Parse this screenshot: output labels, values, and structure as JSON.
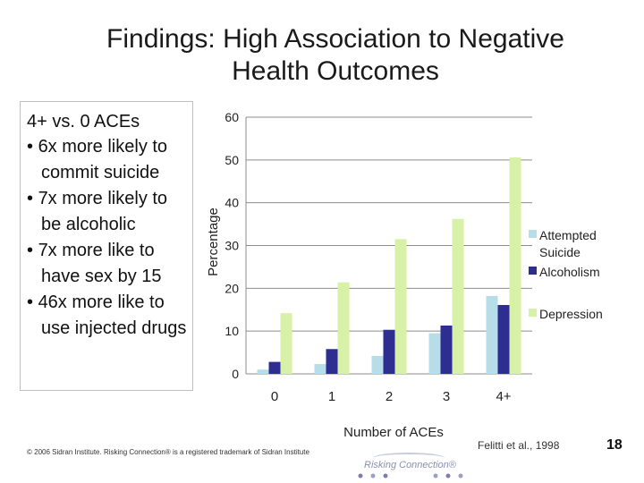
{
  "slide": {
    "title_line1": "Findings: High Association to Negative",
    "title_line2": "Health Outcomes",
    "bullets_heading": "4+  vs. 0 ACEs",
    "bullets": [
      "6x more likely to commit suicide",
      "7x more likely to be alcoholic",
      "7x more like to have sex by 15",
      "46x more like to use injected drugs"
    ],
    "footer_text": "© 2006 Sidran Institute. Risking Connection® is a registered trademark of Sidran Institute",
    "logo_text": "Risking Connection®",
    "citation": "Felitti et al., 1998",
    "slide_number": "18"
  },
  "chart_data": {
    "type": "bar",
    "categories": [
      "0",
      "1",
      "2",
      "3",
      "4+"
    ],
    "series": [
      {
        "name": "Attempted Suicide",
        "color": "#b7dee8",
        "values": [
          1,
          2.3,
          4.2,
          9.5,
          18.2
        ]
      },
      {
        "name": "Alcoholism",
        "color": "#2e2e92",
        "values": [
          2.8,
          5.8,
          10.3,
          11.3,
          16.1
        ]
      },
      {
        "name": "Depression",
        "color": "#d7f1a6",
        "values": [
          14.2,
          21.4,
          31.5,
          36.2,
          50.6
        ]
      }
    ],
    "xlabel": "Number of ACEs",
    "ylabel": "Percentage",
    "ylim": [
      0,
      60
    ],
    "yticks": [
      0,
      10,
      20,
      30,
      40,
      50,
      60
    ],
    "grid": true,
    "legend_position": "right"
  }
}
